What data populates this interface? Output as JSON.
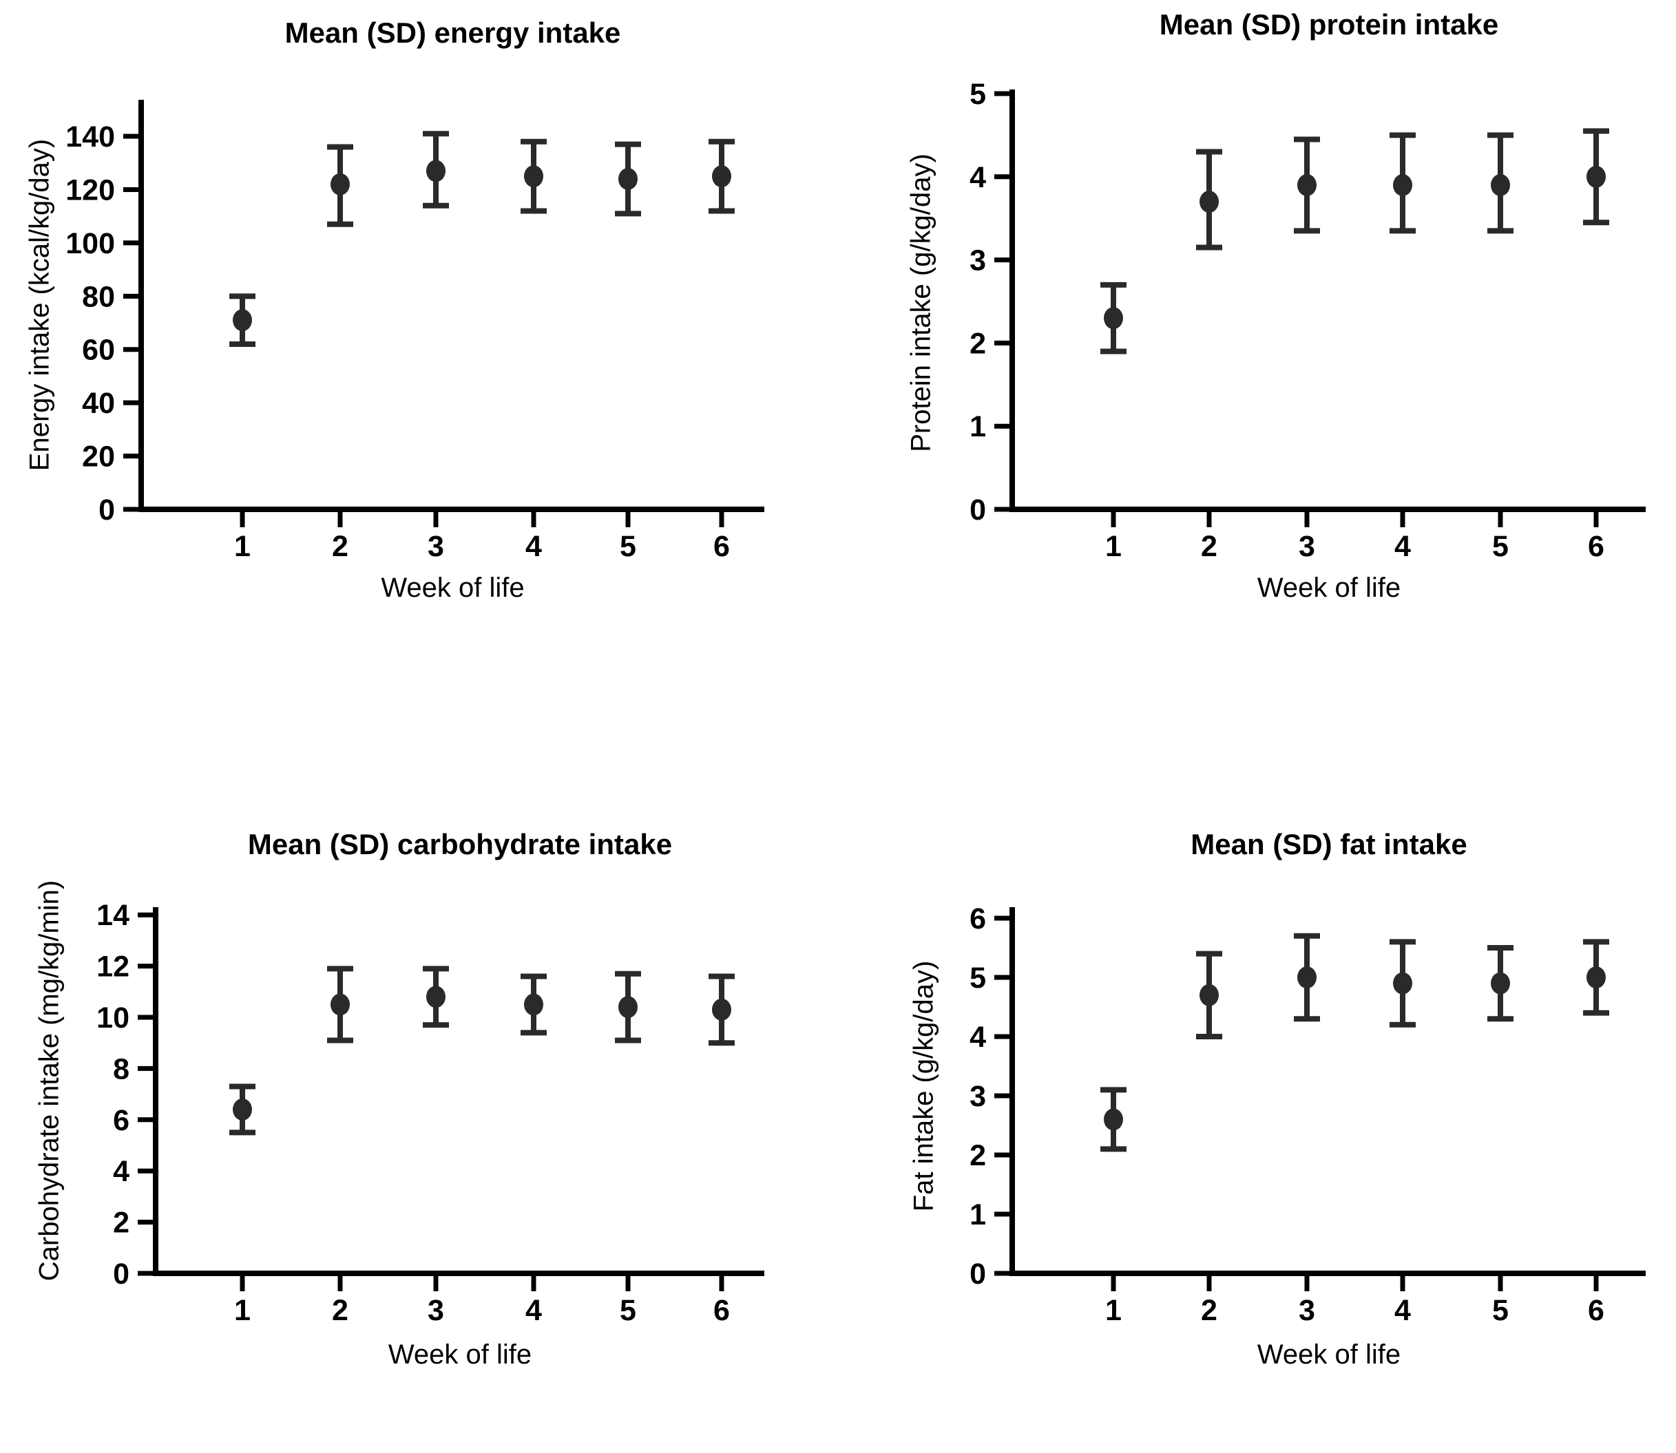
{
  "figure": {
    "background_color": "#ffffff",
    "axis_color": "#000000",
    "marker_color": "#2a2a2a",
    "text_color": "#000000",
    "panels_layout": "2x2 grid of mean-and-SD scatter plots"
  },
  "chart_data": [
    {
      "type": "scatter",
      "title": "Mean (SD) energy intake",
      "ylabel": "Energy intake (kcal/kg/day)",
      "xlabel": "Week of life",
      "x": [
        1,
        2,
        3,
        4,
        5,
        6
      ],
      "x_tick_labels": [
        "1",
        "2",
        "3",
        "4",
        "5",
        "6"
      ],
      "mean": [
        71,
        122,
        127,
        125,
        124,
        125
      ],
      "sd_lower": [
        62,
        107,
        114,
        112,
        111,
        112
      ],
      "sd_upper": [
        80,
        136,
        141,
        138,
        137,
        138
      ],
      "yticks": [
        0,
        20,
        40,
        60,
        80,
        100,
        120,
        140
      ],
      "ylim": [
        0,
        154
      ],
      "grid": false,
      "legend": "none",
      "error_bars": "mean ± SD"
    },
    {
      "type": "scatter",
      "title": "Mean (SD) protein intake",
      "ylabel": "Protein intake (g/kg/day)",
      "xlabel": "Week of life",
      "x": [
        1,
        2,
        3,
        4,
        5,
        6
      ],
      "x_tick_labels": [
        "1",
        "2",
        "3",
        "4",
        "5",
        "6"
      ],
      "mean": [
        2.3,
        3.7,
        3.9,
        3.9,
        3.9,
        4.0
      ],
      "sd_lower": [
        1.9,
        3.15,
        3.35,
        3.35,
        3.35,
        3.45
      ],
      "sd_upper": [
        2.7,
        4.3,
        4.45,
        4.5,
        4.5,
        4.55
      ],
      "yticks": [
        0,
        1,
        2,
        3,
        4,
        5
      ],
      "ylim": [
        0,
        5.05
      ],
      "grid": false,
      "legend": "none",
      "error_bars": "mean ± SD"
    },
    {
      "type": "scatter",
      "title": "Mean (SD) carbohydrate intake",
      "ylabel": "Carbohydrate intake (mg/kg/min)",
      "xlabel": "Week of life",
      "x": [
        1,
        2,
        3,
        4,
        5,
        6
      ],
      "x_tick_labels": [
        "1",
        "2",
        "3",
        "4",
        "5",
        "6"
      ],
      "mean": [
        6.4,
        10.5,
        10.8,
        10.5,
        10.4,
        10.3
      ],
      "sd_lower": [
        5.5,
        9.1,
        9.7,
        9.4,
        9.1,
        9.0
      ],
      "sd_upper": [
        7.3,
        11.9,
        11.9,
        11.6,
        11.7,
        11.6
      ],
      "yticks": [
        0,
        2,
        4,
        6,
        8,
        10,
        12,
        14
      ],
      "ylim": [
        0,
        14.4
      ],
      "grid": false,
      "legend": "none",
      "error_bars": "mean ± SD"
    },
    {
      "type": "scatter",
      "title": "Mean (SD) fat intake",
      "ylabel": "Fat intake (g/kg/day)",
      "xlabel": "Week of life",
      "x": [
        1,
        2,
        3,
        4,
        5,
        6
      ],
      "x_tick_labels": [
        "1",
        "2",
        "3",
        "4",
        "5",
        "6"
      ],
      "mean": [
        2.6,
        4.7,
        5.0,
        4.9,
        4.9,
        5.0
      ],
      "sd_lower": [
        2.1,
        4.0,
        4.3,
        4.2,
        4.3,
        4.4
      ],
      "sd_upper": [
        3.1,
        5.4,
        5.7,
        5.6,
        5.5,
        5.6
      ],
      "yticks": [
        0,
        1,
        2,
        3,
        4,
        5,
        6
      ],
      "ylim": [
        0,
        6.2
      ],
      "grid": false,
      "legend": "none",
      "error_bars": "mean ± SD"
    }
  ]
}
